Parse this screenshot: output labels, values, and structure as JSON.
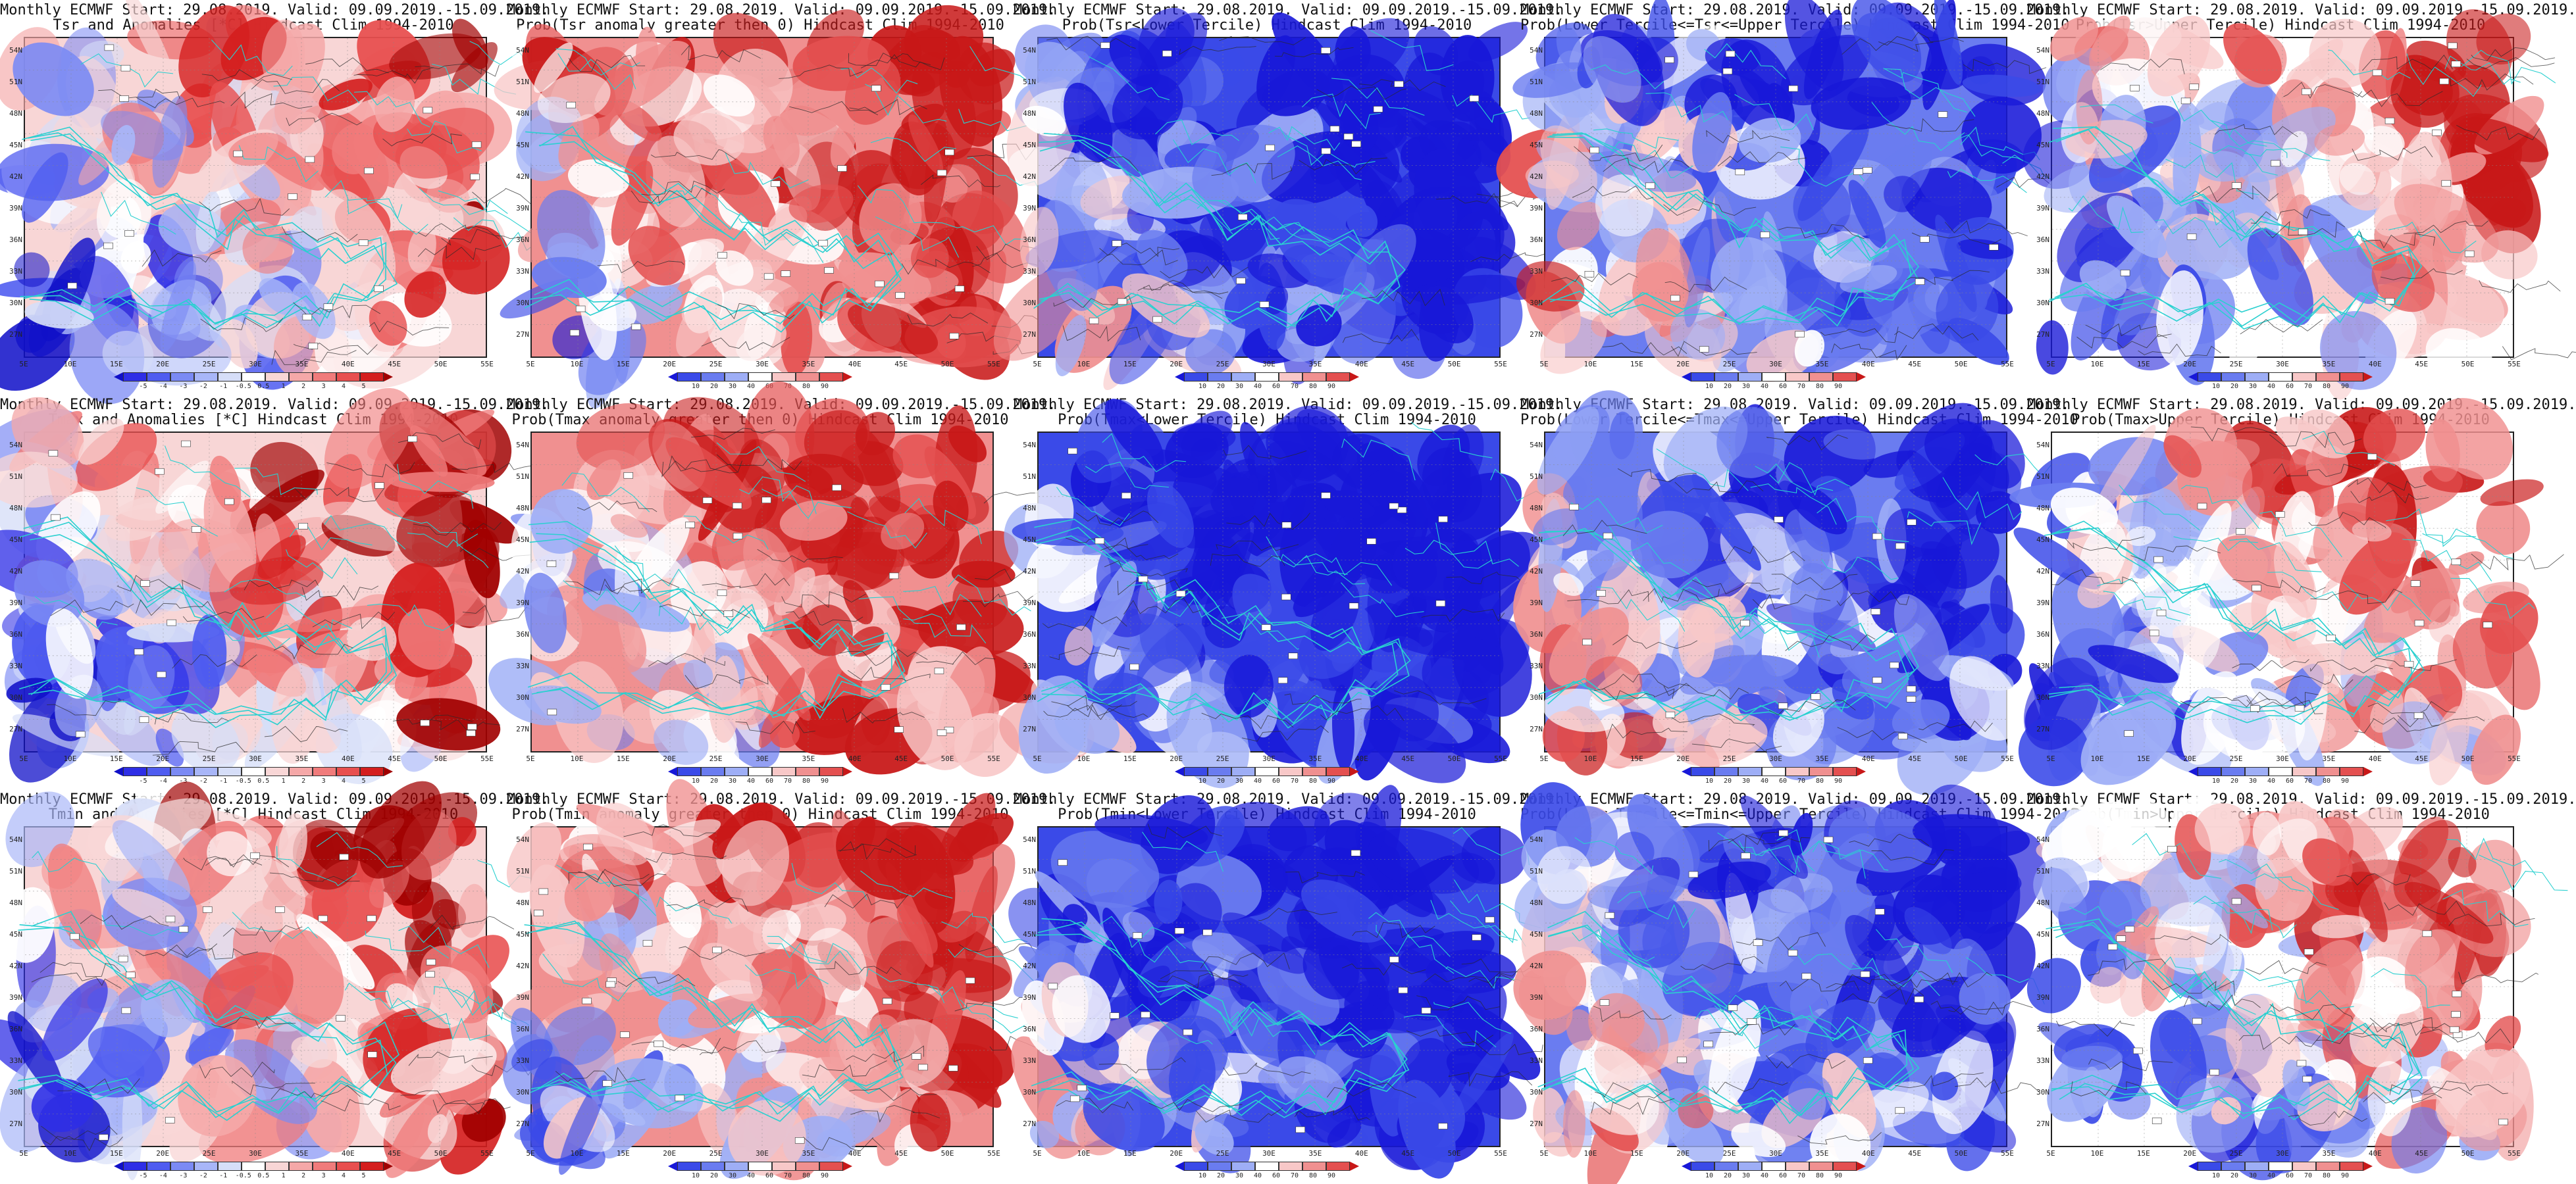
{
  "x_ticks": [
    "5E",
    "10E",
    "15E",
    "20E",
    "25E",
    "30E",
    "35E",
    "40E",
    "45E",
    "50E",
    "55E"
  ],
  "y_ticks": [
    "54N",
    "51N",
    "48N",
    "45N",
    "42N",
    "39N",
    "36N",
    "33N",
    "30N",
    "27N"
  ],
  "colorbars": {
    "anomaly": {
      "labels": [
        "-5",
        "-4",
        "-3",
        "-2",
        "-1",
        "-0.5",
        "0.5",
        "1",
        "2",
        "3",
        "4",
        "5"
      ],
      "colors": [
        "#1010c8",
        "#2e2ee6",
        "#4f5cf0",
        "#7b8af4",
        "#a8b6f8",
        "#d6def8",
        "#ffffff",
        "#f8d6d6",
        "#f5a8a8",
        "#f07b7b",
        "#e84f4f",
        "#d41e1e",
        "#a00000"
      ]
    },
    "probability": {
      "labels": [
        "10",
        "20",
        "30",
        "40",
        "60",
        "70",
        "80",
        "90"
      ],
      "colors": [
        "#1818d8",
        "#3a4ae8",
        "#6a7cf0",
        "#9eaef6",
        "#ffffff",
        "#f8c8c8",
        "#f09090",
        "#e45050",
        "#c81818"
      ]
    }
  },
  "panels": [
    {
      "title1": "Monthly ECMWF Start: 29.08.2019. Valid: 09.09.2019.-15.09.2019.",
      "title2": "Tsr and Anomalies [*C] Hindcast Clim 1994-2010",
      "colorbar": "anomaly",
      "bias": 0.55,
      "seed": 11,
      "gradient": 1
    },
    {
      "title1": "Monthly ECMWF Start: 29.08.2019. Valid: 09.09.2019.-15.09.2019.",
      "title2": "Prob(Tsr anomaly greater then 0) Hindcast Clim 1994-2010",
      "colorbar": "probability",
      "bias": 0.72,
      "seed": 23,
      "gradient": 1
    },
    {
      "title1": "Monthly ECMWF Start: 29.08.2019. Valid: 09.09.2019.-15.09.2019.",
      "title2": "Prob(Tsr<Lower Tercile) Hindcast Clim 1994-2010",
      "colorbar": "probability",
      "bias": 0.12,
      "seed": 37,
      "gradient": -1
    },
    {
      "title1": "Monthly ECMWF Start: 29.08.2019. Valid: 09.09.2019.-15.09.2019.",
      "title2": "Prob(Lower Tercile<=Tsr<=Upper Tercile) Hindcast Clim 1994-2010",
      "colorbar": "probability",
      "bias": 0.3,
      "seed": 41,
      "gradient": -1
    },
    {
      "title1": "Monthly ECMWF Start: 29.08.2019. Valid: 09.09.2019.-15.09.2019.",
      "title2": "Prob(Tsr>Upper Tercile) Hindcast Clim 1994-2010",
      "colorbar": "probability",
      "bias": 0.55,
      "seed": 53,
      "gradient": 1
    },
    {
      "title1": "Monthly ECMWF Start: 29.08.2019. Valid: 09.09.2019.-15.09.2019.",
      "title2": "Tmax and Anomalies [*C] Hindcast Clim 1994-2010",
      "colorbar": "anomaly",
      "bias": 0.58,
      "seed": 61,
      "gradient": 1
    },
    {
      "title1": "Monthly ECMWF Start: 29.08.2019. Valid: 09.09.2019.-15.09.2019.",
      "title2": "Prob(Tmax anomaly greater then 0) Hindcast Clim 1994-2010",
      "colorbar": "probability",
      "bias": 0.74,
      "seed": 67,
      "gradient": 1
    },
    {
      "title1": "Monthly ECMWF Start: 29.08.2019. Valid: 09.09.2019.-15.09.2019.",
      "title2": "Prob(Tmax<Lower Tercile) Hindcast Clim 1994-2010",
      "colorbar": "probability",
      "bias": 0.1,
      "seed": 71,
      "gradient": -1
    },
    {
      "title1": "Monthly ECMWF Start: 29.08.2019. Valid: 09.09.2019.-15.09.2019.",
      "title2": "Prob(Lower Tercile<=Tmax<=Upper Tercile) Hindcast Clim 1994-2010",
      "colorbar": "probability",
      "bias": 0.3,
      "seed": 79,
      "gradient": -1
    },
    {
      "title1": "Monthly ECMWF Start: 29.08.2019. Valid: 09.09.2019.-15.09.2019.",
      "title2": "Prob(Tmax>Upper Tercile) Hindcast Clim 1994-2010",
      "colorbar": "probability",
      "bias": 0.55,
      "seed": 83,
      "gradient": 1
    },
    {
      "title1": "Monthly ECMWF Start: 29.08.2019. Valid: 09.09.2019.-15.09.2019.",
      "title2": "Tmin and Anomalies [*C] Hindcast Clim 1994-2010",
      "colorbar": "anomaly",
      "bias": 0.6,
      "seed": 89,
      "gradient": 1
    },
    {
      "title1": "Monthly ECMWF Start: 29.08.2019. Valid: 09.09.2019.-15.09.2019.",
      "title2": "Prob(Tmin anomaly greater then 0) Hindcast Clim 1994-2010",
      "colorbar": "probability",
      "bias": 0.7,
      "seed": 97,
      "gradient": 1
    },
    {
      "title1": "Monthly ECMWF Start: 29.08.2019. Valid: 09.09.2019.-15.09.2019.",
      "title2": "Prob(Tmin<Lower Tercile) Hindcast Clim 1994-2010",
      "colorbar": "probability",
      "bias": 0.12,
      "seed": 101,
      "gradient": -1
    },
    {
      "title1": "Monthly ECMWF Start: 29.08.2019. Valid: 09.09.2019.-15.09.2019.",
      "title2": "Prob(Lower Tercile<=Tmin<=Upper Tercile) Hindcast Clim 1994-2010",
      "colorbar": "probability",
      "bias": 0.3,
      "seed": 103,
      "gradient": -1
    },
    {
      "title1": "Monthly ECMWF Start: 29.08.2019. Valid: 09.09.2019.-15.09.2019.",
      "title2": "Prob(Tmin>Upper Tercile) Hindcast Clim 1994-2010",
      "colorbar": "probability",
      "bias": 0.55,
      "seed": 107,
      "gradient": 1
    }
  ]
}
